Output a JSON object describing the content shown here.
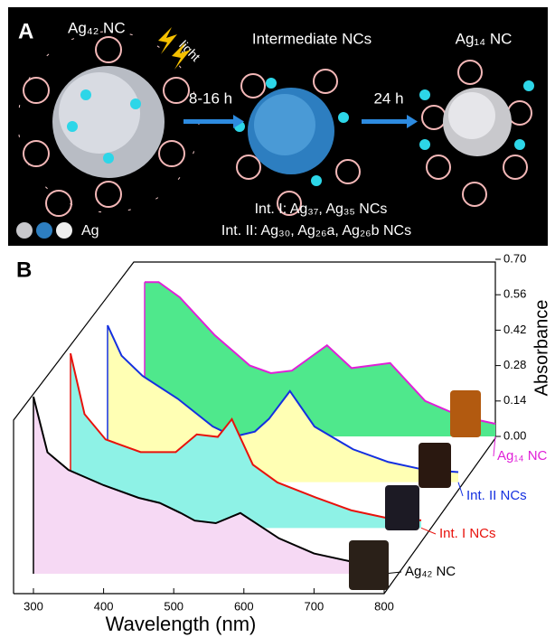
{
  "panel_a": {
    "label": "A",
    "left_title": "Ag₄₂ NC",
    "light": "light",
    "middle_title": "Intermediate NCs",
    "right_title": "Ag₁₄ NC",
    "step1": "8-16 h",
    "step2": "24 h",
    "int1": "Int. I: Ag₃₇, Ag₃₅ NCs",
    "int2": "Int. II: Ag₃₀, Ag₂₆a, Ag₂₆b NCs",
    "legend": "Ag"
  },
  "chart_data": {
    "type": "waterfall",
    "label": "B",
    "x_label": "Wavelength (nm)",
    "z_label": "Absorbance",
    "x": [
      300,
      320,
      350,
      400,
      450,
      480,
      510,
      530,
      560,
      595,
      650,
      700,
      750,
      800
    ],
    "series": [
      {
        "name": "Ag₄₂ NC",
        "color": "#000000",
        "fill": "#f6d9f4",
        "values": [
          0.7,
          0.48,
          0.41,
          0.35,
          0.3,
          0.28,
          0.24,
          0.21,
          0.2,
          0.24,
          0.14,
          0.08,
          0.05,
          0.04
        ]
      },
      {
        "name": "Int. I NCs",
        "color": "#e8120c",
        "fill": "#8ef2e6",
        "values": [
          0.69,
          0.45,
          0.35,
          0.3,
          0.3,
          0.37,
          0.36,
          0.43,
          0.25,
          0.18,
          0.12,
          0.07,
          0.04,
          0.03
        ]
      },
      {
        "name": "Int. II NCs",
        "color": "#1430e0",
        "fill": "#ffffb4",
        "values": [
          0.62,
          0.5,
          0.42,
          0.33,
          0.22,
          0.18,
          0.2,
          0.25,
          0.36,
          0.22,
          0.13,
          0.08,
          0.05,
          0.04
        ]
      },
      {
        "name": "Ag₁₄ NC",
        "color": "#e020d8",
        "fill": "#4fe88c",
        "values": [
          0.61,
          0.61,
          0.55,
          0.4,
          0.28,
          0.25,
          0.26,
          0.3,
          0.36,
          0.27,
          0.29,
          0.14,
          0.08,
          0.05
        ]
      }
    ],
    "xlim": [
      300,
      800
    ],
    "xticks": [
      300,
      400,
      500,
      600,
      700,
      800
    ],
    "zlim": [
      0,
      0.7
    ],
    "zticks": [
      {
        "value": 0,
        "label": "0.00"
      },
      {
        "value": 0.14,
        "label": "0.14"
      },
      {
        "value": 0.28,
        "label": "0.28"
      },
      {
        "value": 0.42,
        "label": "0.42"
      },
      {
        "value": 0.56,
        "label": "0.56"
      },
      {
        "value": 0.7,
        "label": "0.70"
      }
    ]
  }
}
